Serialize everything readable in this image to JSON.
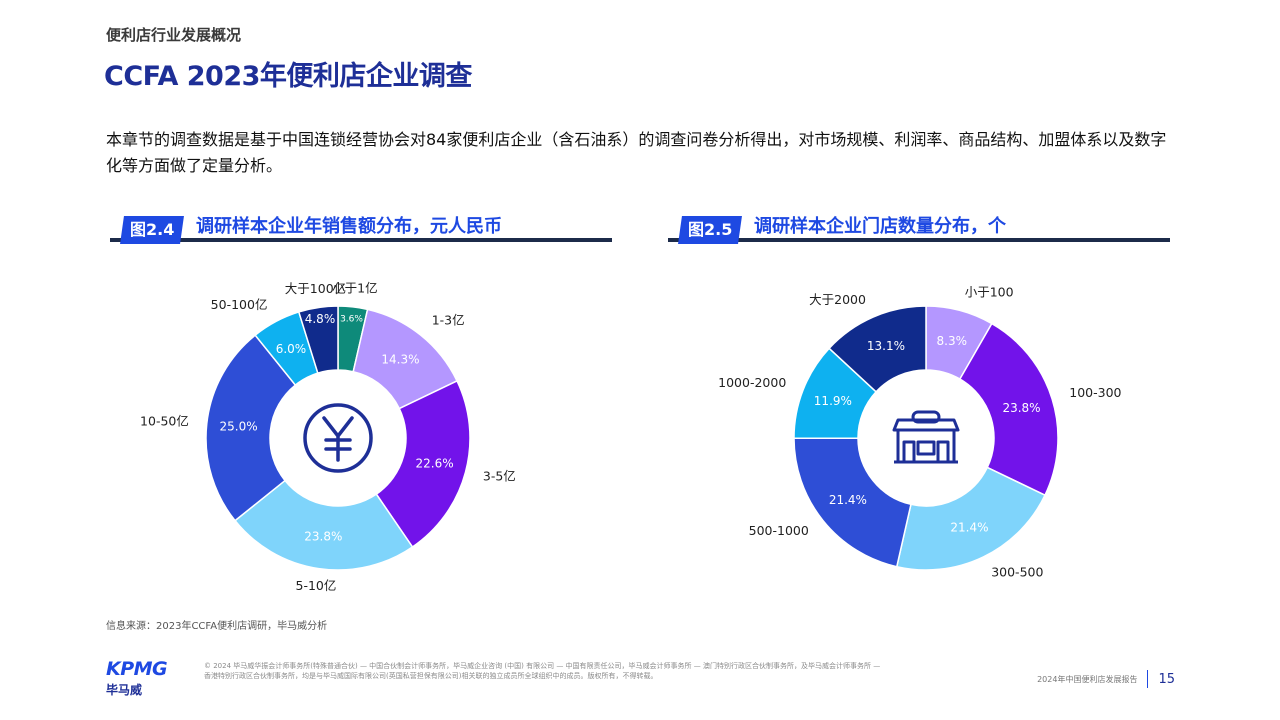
{
  "header": {
    "section_label": "便利店行业发展概况",
    "title": "CCFA 2023年便利店企业调查"
  },
  "intro": "本章节的调查数据是基于中国连锁经营协会对84家便利店企业（含石油系）的调查问卷分析得出，对市场规模、利润率、商品结构、加盟体系以及数字化等方面做了定量分析。",
  "figures": [
    {
      "badge": "图2.4",
      "caption": "调研样本企业年销售额分布，元人民币",
      "center_icon": "yuan-icon"
    },
    {
      "badge": "图2.5",
      "caption": "调研样本企业门店数量分布，个",
      "center_icon": "store-icon"
    }
  ],
  "chart_data": [
    {
      "type": "pie",
      "donut": true,
      "title": "调研样本企业年销售额分布，元人民币",
      "categories": [
        "小于1亿",
        "1-3亿",
        "3-5亿",
        "5-10亿",
        "10-50亿",
        "50-100亿",
        "大于100亿"
      ],
      "values": [
        3.6,
        14.3,
        22.6,
        23.8,
        25.0,
        6.0,
        4.8
      ],
      "value_labels": [
        "3.6%",
        "14.3%",
        "22.6%",
        "23.8%",
        "25.0%",
        "6.0%",
        "4.8%"
      ],
      "colors": [
        "#0e8a7a",
        "#b497ff",
        "#7213ea",
        "#7fd4fb",
        "#2e4ed6",
        "#0eb1f0",
        "#102b8c"
      ]
    },
    {
      "type": "pie",
      "donut": true,
      "title": "调研样本企业门店数量分布，个",
      "categories": [
        "小于100",
        "100-300",
        "300-500",
        "500-1000",
        "1000-2000",
        "大于2000"
      ],
      "values": [
        8.3,
        23.8,
        21.4,
        21.4,
        11.9,
        13.1
      ],
      "value_labels": [
        "8.3%",
        "23.8%",
        "21.4%",
        "21.4%",
        "11.9%",
        "13.1%"
      ],
      "colors": [
        "#b497ff",
        "#7213ea",
        "#7fd4fb",
        "#2e4ed6",
        "#0eb1f0",
        "#102b8c"
      ]
    }
  ],
  "source": "信息来源：2023年CCFA便利店调研，毕马威分析",
  "footer": {
    "logo_text": "KPMG",
    "logo_cn": "毕马威",
    "legal": "© 2024 毕马威华振会计师事务所(特殊普通合伙) — 中国合伙制会计师事务所，毕马威企业咨询 (中国) 有限公司 — 中国有限责任公司，毕马威会计师事务所 — 澳门特别行政区合伙制事务所，及毕马威会计师事务所 — 香港特别行政区合伙制事务所，均是与毕马威国际有限公司(英国私营担保有限公司)相关联的独立成员所全球组织中的成员。版权所有，不得转载。",
    "report_name": "2024年中国便利店发展报告",
    "page_number": "15"
  }
}
